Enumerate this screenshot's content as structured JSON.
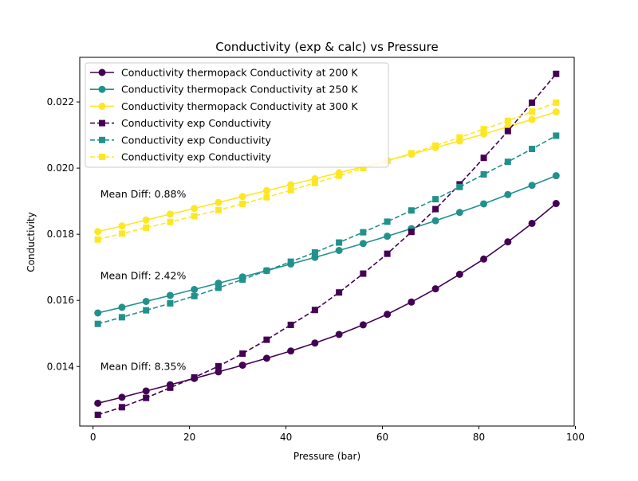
{
  "chart_data": {
    "type": "line",
    "title": "Conductivity (exp & calc) vs Pressure",
    "xlabel": "Pressure (bar)",
    "ylabel": "Conductivity",
    "xlim": [
      -2.75,
      99.75
    ],
    "ylim": [
      0.0122,
      0.02335
    ],
    "xticks": [
      0,
      20,
      40,
      60,
      80,
      100
    ],
    "xtick_labels": [
      "0",
      "20",
      "40",
      "60",
      "80",
      "100"
    ],
    "yticks": [
      0.014,
      0.016,
      0.018,
      0.02,
      0.022
    ],
    "ytick_labels": [
      "0.014",
      "0.016",
      "0.018",
      "0.020",
      "0.022"
    ],
    "grid": false,
    "legend_position": "upper-left",
    "x": [
      1,
      6,
      11,
      16,
      21,
      26,
      31,
      36,
      41,
      46,
      51,
      56,
      61,
      66,
      71,
      76,
      81,
      86,
      91,
      96
    ],
    "series": [
      {
        "name": "Conductivity thermopack Conductivity at 200 K",
        "color": "#440154",
        "style": "solid",
        "marker": "circle",
        "values": [
          0.01289,
          0.01307,
          0.01326,
          0.01345,
          0.01364,
          0.01384,
          0.01404,
          0.01425,
          0.01447,
          0.01471,
          0.01497,
          0.01526,
          0.01558,
          0.01595,
          0.01635,
          0.01679,
          0.01725,
          0.01777,
          0.01833,
          0.01893
        ]
      },
      {
        "name": "Conductivity thermopack Conductivity at 250 K",
        "color": "#21918c",
        "style": "solid",
        "marker": "circle",
        "values": [
          0.01562,
          0.01579,
          0.01597,
          0.01615,
          0.01633,
          0.01652,
          0.01671,
          0.0169,
          0.0171,
          0.0173,
          0.01751,
          0.01772,
          0.01794,
          0.01817,
          0.01841,
          0.01866,
          0.01892,
          0.0192,
          0.01948,
          0.01977
        ]
      },
      {
        "name": "Conductivity thermopack Conductivity at 300 K",
        "color": "#fde725",
        "style": "solid",
        "marker": "circle",
        "values": [
          0.01808,
          0.01825,
          0.01843,
          0.01861,
          0.01878,
          0.01896,
          0.01914,
          0.01932,
          0.0195,
          0.01968,
          0.01986,
          0.02004,
          0.02023,
          0.02042,
          0.02062,
          0.02082,
          0.02103,
          0.02125,
          0.02147,
          0.0217
        ]
      },
      {
        "name": "Conductivity exp Conductivity",
        "color": "#440154",
        "style": "dashed",
        "marker": "square",
        "values": [
          0.01254,
          0.01277,
          0.01305,
          0.01336,
          0.01367,
          0.01401,
          0.01439,
          0.01481,
          0.01526,
          0.01571,
          0.01624,
          0.01681,
          0.01741,
          0.01807,
          0.01876,
          0.01951,
          0.02031,
          0.02112,
          0.02198,
          0.02285
        ]
      },
      {
        "name": "Conductivity exp Conductivity",
        "color": "#21918c",
        "style": "dashed",
        "marker": "square",
        "values": [
          0.01529,
          0.01549,
          0.0157,
          0.01591,
          0.01613,
          0.01638,
          0.01663,
          0.0169,
          0.01717,
          0.01745,
          0.01775,
          0.01806,
          0.01838,
          0.01872,
          0.01906,
          0.01943,
          0.01981,
          0.02019,
          0.02058,
          0.02098
        ]
      },
      {
        "name": "Conductivity exp Conductivity",
        "color": "#fde725",
        "style": "dashed",
        "marker": "square",
        "values": [
          0.01784,
          0.01802,
          0.0182,
          0.01837,
          0.01855,
          0.01873,
          0.01892,
          0.01912,
          0.01933,
          0.01955,
          0.01977,
          0.02,
          0.02022,
          0.02045,
          0.02068,
          0.02093,
          0.02118,
          0.02143,
          0.02171,
          0.02198
        ]
      }
    ],
    "annotations": [
      {
        "text": "Mean Diff: 8.35%",
        "x": 1.5,
        "y": 0.0139
      },
      {
        "text": "Mean Diff: 2.42%",
        "x": 1.5,
        "y": 0.01664
      },
      {
        "text": "Mean Diff: 0.88%",
        "x": 1.5,
        "y": 0.01911
      }
    ]
  }
}
